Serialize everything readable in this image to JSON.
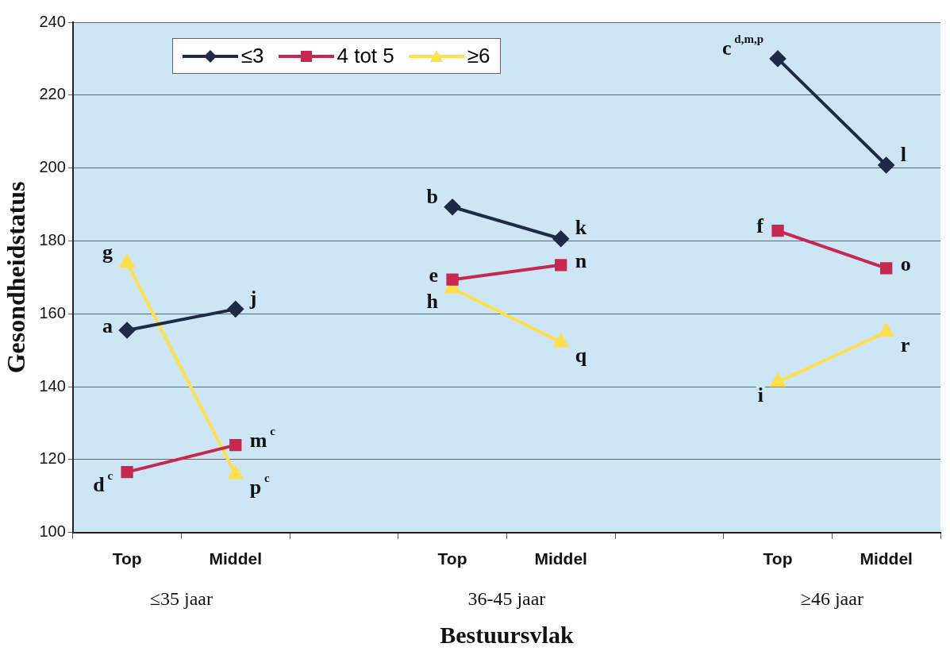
{
  "chart_data": {
    "type": "line",
    "xlabel": "Bestuursvlak",
    "ylabel": "Gesondheidstatus",
    "categories": [
      "Top",
      "Middel",
      null,
      "Top",
      "Middel",
      null,
      "Top",
      "Middel"
    ],
    "series": [
      {
        "name": "≤3",
        "color": "#1f2a48",
        "marker": "diamond",
        "values": [
          155.5,
          161.3,
          null,
          189.3,
          180.6,
          null,
          230,
          200.8
        ],
        "value_labels": [
          "a",
          "j",
          null,
          "b",
          "k",
          null,
          "c$^{d,m,p}$",
          "l"
        ]
      },
      {
        "name": "4 tot 5",
        "color": "#c8284f",
        "marker": "square",
        "values": [
          116.6,
          124,
          null,
          169.4,
          173.4,
          null,
          182.8,
          172.5
        ],
        "value_labels": [
          "d$^{c}$",
          "m$^{c}$",
          null,
          "e",
          "n",
          null,
          "f",
          "o"
        ]
      },
      {
        "name": "≥6",
        "color": "#ffe04a",
        "marker": "triangle",
        "values": [
          174,
          116,
          null,
          167,
          152.2,
          null,
          141.3,
          155
        ],
        "value_labels": [
          "g",
          "p$^{c}$",
          null,
          "h",
          "q",
          null,
          "i",
          "r"
        ]
      }
    ],
    "ylim": [
      100,
      240
    ],
    "yticks": [
      100,
      120,
      140,
      160,
      180,
      200,
      220,
      240
    ],
    "grid": "y",
    "legend": "top left",
    "line_style": "solid",
    "annotations": [
      "≤35 jaar",
      "36-45 jaar",
      "≥46 jaar"
    ]
  }
}
